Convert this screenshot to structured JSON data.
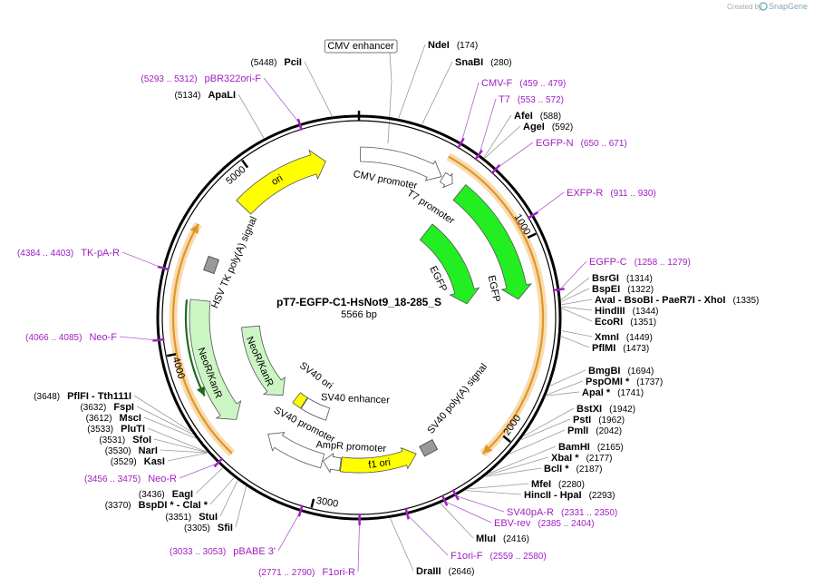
{
  "header": {
    "credit": "Created by",
    "brand": "SnapGene"
  },
  "map": {
    "name": "pT7-EGFP-C1-HsNot9_18-285_S",
    "length": "5566 bp",
    "ticks": [
      1000,
      2000,
      3000,
      4000,
      5000
    ]
  },
  "features": [
    {
      "label": "CMV enhancer"
    },
    {
      "label": "CMV promoter"
    },
    {
      "label": "T7 promoter"
    },
    {
      "label": "EGFP"
    },
    {
      "label": "EGFP"
    },
    {
      "label": "SV40 poly(A) signal"
    },
    {
      "label": "f1 ori"
    },
    {
      "label": "AmpR promoter"
    },
    {
      "label": "SV40 promoter"
    },
    {
      "label": "SV40 ori"
    },
    {
      "label": "SV40 enhancer"
    },
    {
      "label": "NeoR/KanR"
    },
    {
      "label": "NeoR/KanR"
    },
    {
      "label": "HSV TK poly(A) signal"
    },
    {
      "label": "ori"
    }
  ],
  "sites": [
    {
      "name": "NdeI",
      "position": "(174)"
    },
    {
      "name": "SnaBI",
      "position": "(280)"
    },
    {
      "name": "AfeI",
      "position": "(588)"
    },
    {
      "name": "AgeI",
      "position": "(592)"
    },
    {
      "name": "BsrGI",
      "position": "(1314)"
    },
    {
      "name": "BspEI",
      "position": "(1322)"
    },
    {
      "name": "AvaI - BsoBI - PaeR7I - XhoI",
      "position": "(1335)"
    },
    {
      "name": "HindIII",
      "position": "(1344)"
    },
    {
      "name": "EcoRI",
      "position": "(1351)"
    },
    {
      "name": "XmnI",
      "position": "(1449)"
    },
    {
      "name": "PflMI",
      "position": "(1473)"
    },
    {
      "name": "BmgBI",
      "position": "(1694)"
    },
    {
      "name": "PspOMI *",
      "position": "(1737)"
    },
    {
      "name": "ApaI *",
      "position": "(1741)"
    },
    {
      "name": "BstXI",
      "position": "(1942)"
    },
    {
      "name": "PstI",
      "position": "(1962)"
    },
    {
      "name": "PmlI",
      "position": "(2042)"
    },
    {
      "name": "BamHI",
      "position": "(2165)"
    },
    {
      "name": "XbaI *",
      "position": "(2177)"
    },
    {
      "name": "BclI *",
      "position": "(2187)"
    },
    {
      "name": "MfeI",
      "position": "(2280)"
    },
    {
      "name": "HincII - HpaI",
      "position": "(2293)"
    },
    {
      "name": "MluI",
      "position": "(2416)"
    },
    {
      "name": "DraIII",
      "position": "(2646)"
    },
    {
      "name": "PflFI - Tth111I",
      "position": "(3648)"
    },
    {
      "name": "FspI",
      "position": "(3632)"
    },
    {
      "name": "MscI",
      "position": "(3612)"
    },
    {
      "name": "PluTI",
      "position": "(3533)"
    },
    {
      "name": "SfoI",
      "position": "(3531)"
    },
    {
      "name": "NarI",
      "position": "(3530)"
    },
    {
      "name": "KasI",
      "position": "(3529)"
    },
    {
      "name": "EagI",
      "position": "(3436)"
    },
    {
      "name": "BspDI * - ClaI *",
      "position": "(3370)"
    },
    {
      "name": "StuI",
      "position": "(3351)"
    },
    {
      "name": "SfiI",
      "position": "(3305)"
    },
    {
      "name": "ApaLI",
      "position": "(5134)"
    },
    {
      "name": "PciI",
      "position": "(5448)"
    }
  ],
  "primers": [
    {
      "name": "CMV-F",
      "range": "(459 .. 479)"
    },
    {
      "name": "T7",
      "range": "(553 .. 572)"
    },
    {
      "name": "EGFP-N",
      "range": "(650 .. 671)"
    },
    {
      "name": "EXFP-R",
      "range": "(911 .. 930)"
    },
    {
      "name": "EGFP-C",
      "range": "(1258 .. 1279)"
    },
    {
      "name": "SV40pA-R",
      "range": "(2331 .. 2350)"
    },
    {
      "name": "EBV-rev",
      "range": "(2385 .. 2404)"
    },
    {
      "name": "F1ori-F",
      "range": "(2559 .. 2580)"
    },
    {
      "name": "F1ori-R",
      "range": "(2771 .. 2790)"
    },
    {
      "name": "pBABE 3'",
      "range": "(3033 .. 3053)"
    },
    {
      "name": "Neo-R",
      "range": "(3456 .. 3475)"
    },
    {
      "name": "Neo-F",
      "range": "(4066 .. 4085)"
    },
    {
      "name": "TK-pA-R",
      "range": "(4384 .. 4403)"
    },
    {
      "name": "pBR322ori-F",
      "range": "(5293 .. 5312)"
    }
  ]
}
